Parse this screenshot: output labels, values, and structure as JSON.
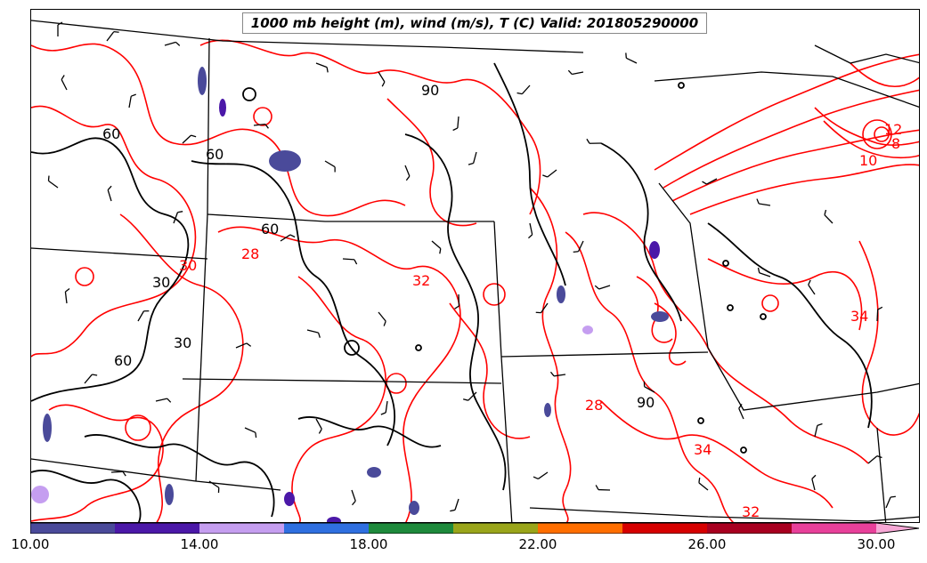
{
  "title": "1000 mb height (m), wind (m/s), T (C) Valid: 201805290000",
  "colors": {
    "temperature_contour": "#ff0000",
    "height_contour": "#000000",
    "wind_barb": "#000000",
    "boundary": "#000000"
  },
  "colorbar": {
    "colors": [
      "#4a4a9a",
      "#4b18a8",
      "#c59ef0",
      "#2f6fe0",
      "#1e8a3c",
      "#9aa51a",
      "#ff6e00",
      "#d60000",
      "#a80020",
      "#e8409a"
    ],
    "extend_color": "#f7a8d6",
    "ticks": [
      "10.00",
      "14.00",
      "18.00",
      "22.00",
      "26.00",
      "30.00"
    ]
  },
  "contour_labels": {
    "height": [
      "90",
      "60",
      "60",
      "60",
      "30",
      "30",
      "60",
      "90"
    ],
    "temperature": [
      "30",
      "28",
      "32",
      "28",
      "34",
      "32",
      "12",
      "8",
      "10",
      "34"
    ]
  }
}
